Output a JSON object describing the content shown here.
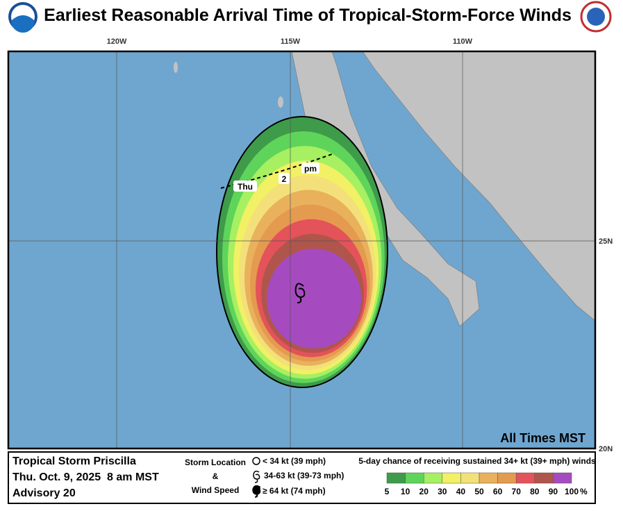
{
  "header": {
    "title": "Earliest Reasonable Arrival Time of Tropical-Storm-Force Winds"
  },
  "map": {
    "lon_labels": [
      "120W",
      "115W",
      "110W"
    ],
    "lat_labels": [
      "25N",
      "20N"
    ],
    "arrival_line": {
      "day": "Thu",
      "hour": "2",
      "ampm": "pm"
    },
    "timezone_note": "All Times MST"
  },
  "legend": {
    "storm": {
      "name": "Tropical Storm Priscilla",
      "date": "Thu. Oct. 9, 2025  8 am MST",
      "advisory": "Advisory 20"
    },
    "symbols": {
      "title_top": "Storm Location",
      "title_mid": "&",
      "title_bottom": "Wind Speed",
      "items": [
        "< 34 kt (39 mph)",
        "34-63 kt (39-73 mph)",
        "≥ 64 kt (74 mph)"
      ]
    },
    "scale": {
      "title": "5-day chance of receiving sustained 34+ kt (39+ mph) winds",
      "labels": [
        5,
        10,
        20,
        30,
        40,
        50,
        60,
        70,
        80,
        90,
        100
      ],
      "unit": "%",
      "colors": [
        "#3e9b4a",
        "#5fd45a",
        "#a6f062",
        "#f2f064",
        "#f3e07a",
        "#e9b15c",
        "#e49a4f",
        "#e4525a",
        "#b0554c",
        "#a54bbf"
      ]
    }
  }
}
